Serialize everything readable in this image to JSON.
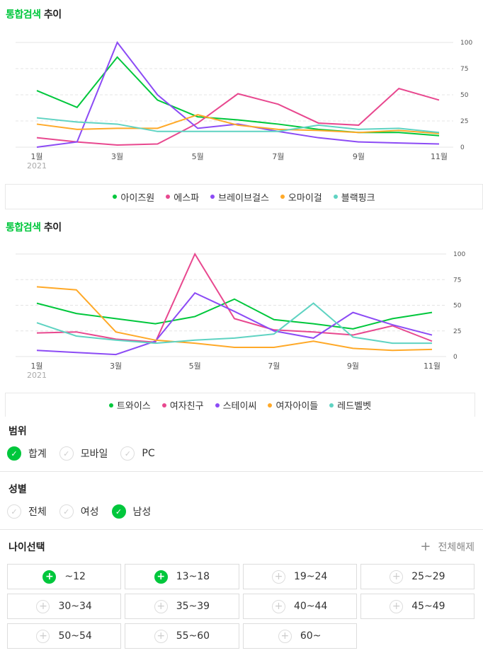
{
  "colors": {
    "accent": "#00c73c",
    "series": [
      "#00c73c",
      "#e8488f",
      "#8c4bf5",
      "#ffa928",
      "#5fd3c2"
    ]
  },
  "chart_data": [
    {
      "type": "line",
      "title_green": "통합검색",
      "title_rest": "추이",
      "x": [
        "1월",
        "2월",
        "3월",
        "4월",
        "5월",
        "6월",
        "7월",
        "8월",
        "9월",
        "10월",
        "11월"
      ],
      "x_tick_labels": [
        "1월",
        "3월",
        "5월",
        "7월",
        "9월",
        "11월"
      ],
      "year_label": "2021",
      "y_ticks": [
        0,
        25,
        50,
        75,
        100
      ],
      "ylim": [
        0,
        100
      ],
      "legend": "bottom",
      "series": [
        {
          "name": "아이즈원",
          "values": [
            54,
            38,
            86,
            45,
            29,
            26,
            22,
            17,
            14,
            14,
            11
          ]
        },
        {
          "name": "에스파",
          "values": [
            9,
            5,
            2,
            3,
            23,
            51,
            41,
            23,
            21,
            56,
            45
          ]
        },
        {
          "name": "브레이브걸스",
          "values": [
            0,
            5,
            100,
            50,
            18,
            22,
            15,
            9,
            5,
            4,
            3
          ]
        },
        {
          "name": "오마이걸",
          "values": [
            22,
            17,
            18,
            18,
            31,
            21,
            17,
            16,
            14,
            16,
            13
          ]
        },
        {
          "name": "블랙핑크",
          "values": [
            28,
            24,
            22,
            15,
            15,
            15,
            15,
            21,
            17,
            18,
            14
          ]
        }
      ]
    },
    {
      "type": "line",
      "title_green": "통합검색",
      "title_rest": "추이",
      "x": [
        "1월",
        "2월",
        "3월",
        "4월",
        "5월",
        "6월",
        "7월",
        "8월",
        "9월",
        "10월",
        "11월"
      ],
      "x_tick_labels": [
        "1월",
        "3월",
        "5월",
        "7월",
        "9월",
        "11월"
      ],
      "year_label": "2021",
      "y_ticks": [
        0,
        25,
        50,
        75,
        100
      ],
      "ylim": [
        0,
        100
      ],
      "legend": "bottom",
      "series": [
        {
          "name": "트와이스",
          "values": [
            52,
            42,
            37,
            32,
            39,
            56,
            36,
            32,
            27,
            37,
            43
          ]
        },
        {
          "name": "여자친구",
          "values": [
            23,
            24,
            17,
            14,
            100,
            37,
            26,
            24,
            21,
            30,
            15
          ]
        },
        {
          "name": "스테이씨",
          "values": [
            6,
            4,
            2,
            15,
            62,
            44,
            25,
            18,
            43,
            31,
            21
          ]
        },
        {
          "name": "여자아이들",
          "values": [
            68,
            65,
            24,
            16,
            13,
            9,
            9,
            15,
            8,
            6,
            7
          ]
        },
        {
          "name": "레드벨벳",
          "values": [
            33,
            20,
            16,
            13,
            16,
            18,
            22,
            52,
            19,
            13,
            13
          ]
        }
      ]
    }
  ],
  "filters": {
    "range": {
      "label": "범위",
      "options": [
        {
          "label": "합계",
          "checked": true
        },
        {
          "label": "모바일",
          "checked": false
        },
        {
          "label": "PC",
          "checked": false
        }
      ]
    },
    "gender": {
      "label": "성별",
      "options": [
        {
          "label": "전체",
          "checked": false
        },
        {
          "label": "여성",
          "checked": false
        },
        {
          "label": "남성",
          "checked": true
        }
      ]
    },
    "age": {
      "label": "나이선택",
      "clear_label": "전체해제",
      "options": [
        {
          "label": "~12",
          "checked": true
        },
        {
          "label": "13~18",
          "checked": true
        },
        {
          "label": "19~24",
          "checked": false
        },
        {
          "label": "25~29",
          "checked": false
        },
        {
          "label": "30~34",
          "checked": false
        },
        {
          "label": "35~39",
          "checked": false
        },
        {
          "label": "40~44",
          "checked": false
        },
        {
          "label": "45~49",
          "checked": false
        },
        {
          "label": "50~54",
          "checked": false
        },
        {
          "label": "55~60",
          "checked": false
        },
        {
          "label": "60~",
          "checked": false
        }
      ]
    }
  }
}
